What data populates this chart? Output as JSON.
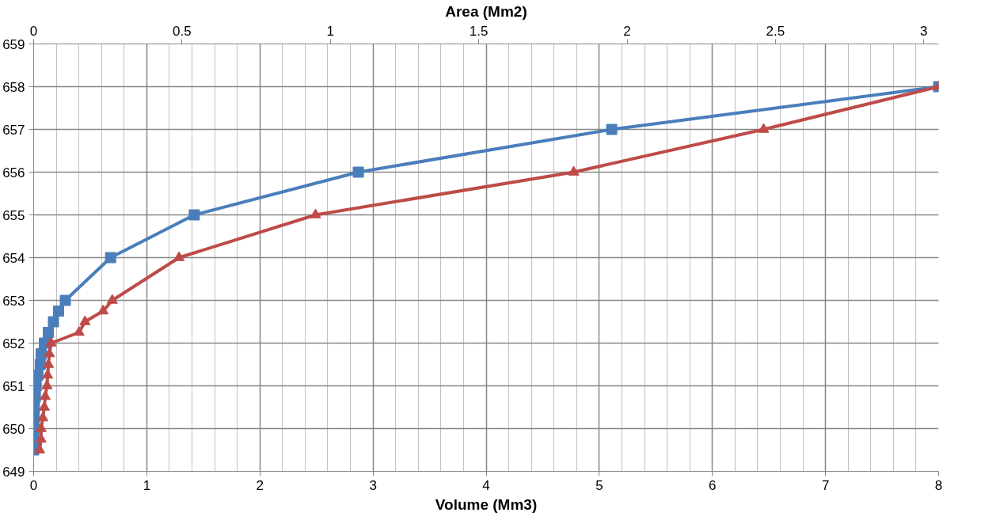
{
  "chart_data": {
    "type": "line",
    "xlabel": "Volume (Mm3)",
    "x2label": "Area (Mm2)",
    "xlim": [
      0,
      8
    ],
    "xticks": [
      0,
      {
        "value": 0.2,
        "label": null
      },
      {
        "value": 0.4,
        "label": null
      },
      {
        "value": 0.6,
        "label": null
      },
      {
        "value": 0.8,
        "label": null
      },
      1,
      {
        "value": 1.2,
        "label": null
      },
      {
        "value": 1.4,
        "label": null
      },
      {
        "value": 1.6,
        "label": null
      },
      {
        "value": 1.8,
        "label": null
      },
      2,
      {
        "value": 2.2,
        "label": null
      },
      {
        "value": 2.4,
        "label": null
      },
      {
        "value": 2.6,
        "label": null
      },
      {
        "value": 2.8,
        "label": null
      },
      3,
      {
        "value": 3.2,
        "label": null
      },
      {
        "value": 3.4,
        "label": null
      },
      {
        "value": 3.6,
        "label": null
      },
      {
        "value": 3.8,
        "label": null
      },
      4,
      {
        "value": 4.2,
        "label": null
      },
      {
        "value": 4.4,
        "label": null
      },
      {
        "value": 4.6,
        "label": null
      },
      {
        "value": 4.8,
        "label": null
      },
      5,
      {
        "value": 5.2,
        "label": null
      },
      {
        "value": 5.4,
        "label": null
      },
      {
        "value": 5.6,
        "label": null
      },
      {
        "value": 5.8,
        "label": null
      },
      6,
      {
        "value": 6.2,
        "label": null
      },
      {
        "value": 6.4,
        "label": null
      },
      {
        "value": 6.6,
        "label": null
      },
      {
        "value": 6.8,
        "label": null
      },
      7,
      {
        "value": 7.2,
        "label": null
      },
      {
        "value": 7.4,
        "label": null
      },
      {
        "value": 7.6,
        "label": null
      },
      {
        "value": 7.8,
        "label": null
      },
      8
    ],
    "x2lim": [
      0,
      3.05
    ],
    "x2ticks": [
      0,
      0.5,
      1,
      1.5,
      2,
      2.5,
      3
    ],
    "ylim": [
      649,
      659
    ],
    "yticks": [
      649,
      650,
      651,
      652,
      653,
      654,
      655,
      656,
      657,
      658,
      659
    ],
    "grid": true,
    "line_style": "solid",
    "series": [
      {
        "color": "#4a7ebb",
        "marker": "square",
        "x": [
          0,
          0.001,
          0.003,
          0.005,
          0.007,
          0.015,
          0.022,
          0.037,
          0.058,
          0.066,
          0.095,
          0.13,
          0.175,
          0.22,
          0.28,
          0.68,
          1.42,
          2.87,
          5.11,
          8.0
        ],
        "values": [
          649.5,
          649.75,
          650,
          650.25,
          650.5,
          650.75,
          651,
          651.25,
          651.5,
          651.75,
          652,
          652.25,
          652.5,
          652.75,
          653,
          654,
          655,
          656,
          657,
          658
        ]
      },
      {
        "color": "#be4b48",
        "marker": "triangle",
        "axis": "x2",
        "x": [
          0.02,
          0.025,
          0.025,
          0.031,
          0.036,
          0.039,
          0.045,
          0.047,
          0.05,
          0.053,
          0.059,
          0.153,
          0.173,
          0.234,
          0.265,
          0.49,
          0.95,
          1.82,
          2.46,
          3.05
        ],
        "values": [
          649.5,
          649.75,
          650,
          650.25,
          650.5,
          650.75,
          651,
          651.25,
          651.5,
          651.75,
          652,
          652.25,
          652.5,
          652.75,
          653,
          654,
          655,
          656,
          657,
          658
        ]
      }
    ]
  }
}
